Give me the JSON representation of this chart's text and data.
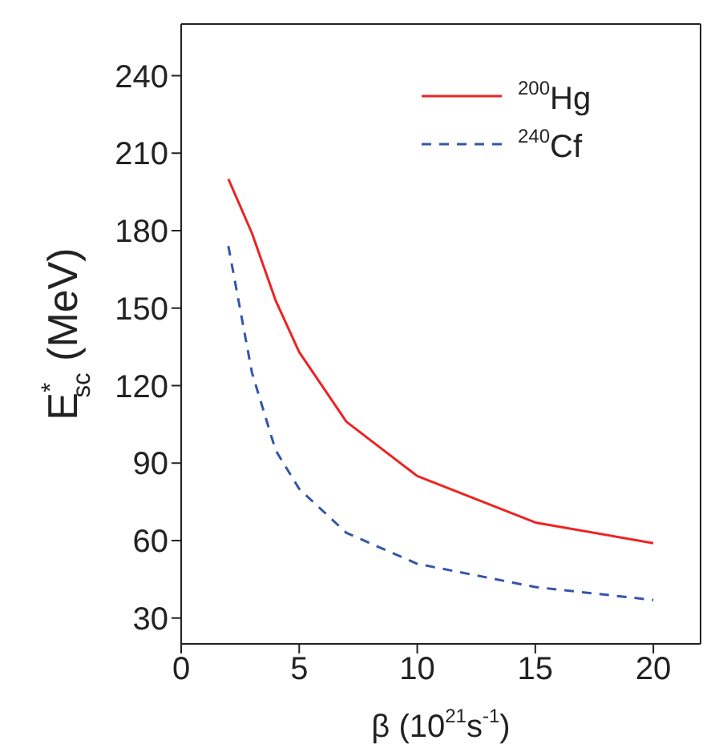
{
  "chart_data": {
    "type": "line",
    "xlabel": "β (10$^{21}$s$^{-1}$)",
    "ylabel": "E$^{*}$$_{sc}$ (MeV)",
    "x": [
      2,
      3,
      4,
      5,
      7,
      10,
      15,
      20
    ],
    "series": [
      {
        "name": "$^{200}$Hg",
        "color": "#ee2222",
        "values": [
          200,
          179,
          153,
          133,
          106,
          85,
          67,
          59
        ],
        "line_style": "solid"
      },
      {
        "name": "$^{240}$Cf",
        "color": "#3355aa",
        "values": [
          174,
          125,
          95,
          80,
          63,
          51,
          42,
          37
        ],
        "line_style": "dashed"
      }
    ],
    "xlim": [
      0,
      22
    ],
    "xticks": [
      0,
      5,
      10,
      15,
      20
    ],
    "ylim": [
      20,
      260
    ],
    "yticks": [
      30,
      60,
      90,
      120,
      150,
      180,
      210,
      240
    ],
    "grid": false,
    "legend": "top right",
    "marker": "none"
  }
}
